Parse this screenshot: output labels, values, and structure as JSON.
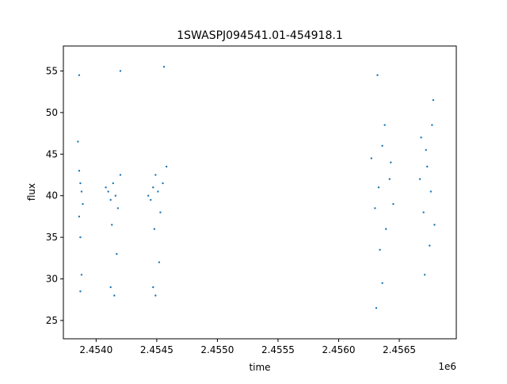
{
  "chart_data": {
    "type": "scatter",
    "title": "1SWASPJ094541.01-454918.1",
    "xlabel": "time",
    "ylabel": "flux",
    "x_offset_label": "1e6",
    "xlim": [
      2.45373,
      2.45697
    ],
    "ylim": [
      22.8,
      58.0
    ],
    "x_ticks": [
      2.454,
      2.4545,
      2.455,
      2.4555,
      2.456,
      2.4565
    ],
    "x_tick_labels": [
      "2.4540",
      "2.4545",
      "2.4550",
      "2.4555",
      "2.4560",
      "2.4565"
    ],
    "y_ticks": [
      25,
      30,
      35,
      40,
      45,
      50,
      55
    ],
    "y_tick_labels": [
      "25",
      "30",
      "35",
      "40",
      "45",
      "50",
      "55"
    ],
    "grid": false,
    "marker_color": "#1f77b4",
    "series": [
      {
        "x": [
          2.45385,
          2.45386,
          2.45387,
          2.45388,
          2.45389,
          2.45386,
          2.45387,
          2.45388,
          2.45387,
          2.45386,
          2.45408,
          2.4541,
          2.45412,
          2.45414,
          2.45416,
          2.45418,
          2.4542,
          2.45413,
          2.45417,
          2.45412,
          2.45415,
          2.4542,
          2.45443,
          2.45445,
          2.45447,
          2.45449,
          2.45451,
          2.45453,
          2.45455,
          2.45458,
          2.45448,
          2.45452,
          2.45447,
          2.45449,
          2.45456,
          2.45627,
          2.4563,
          2.45633,
          2.45636,
          2.45639,
          2.45642,
          2.45645,
          2.45634,
          2.45638,
          2.45632,
          2.45636,
          2.45631,
          2.45643,
          2.45667,
          2.4567,
          2.45673,
          2.45676,
          2.45679,
          2.45672,
          2.45675,
          2.45671,
          2.45677,
          2.45678,
          2.45668
        ],
        "y": [
          46.5,
          43.0,
          41.5,
          40.5,
          39.0,
          37.5,
          35.0,
          30.5,
          28.5,
          54.5,
          41.0,
          40.5,
          39.5,
          41.5,
          40.0,
          38.5,
          42.5,
          36.5,
          33.0,
          29.0,
          28.0,
          55.0,
          40.0,
          39.5,
          41.0,
          42.5,
          40.5,
          38.0,
          41.5,
          43.5,
          36.0,
          32.0,
          29.0,
          28.0,
          55.5,
          44.5,
          38.5,
          41.0,
          46.0,
          36.0,
          42.0,
          39.0,
          33.5,
          48.5,
          54.5,
          29.5,
          26.5,
          44.0,
          42.0,
          38.0,
          43.5,
          40.5,
          36.5,
          45.5,
          34.0,
          30.5,
          48.5,
          51.5,
          47.0
        ]
      }
    ]
  }
}
